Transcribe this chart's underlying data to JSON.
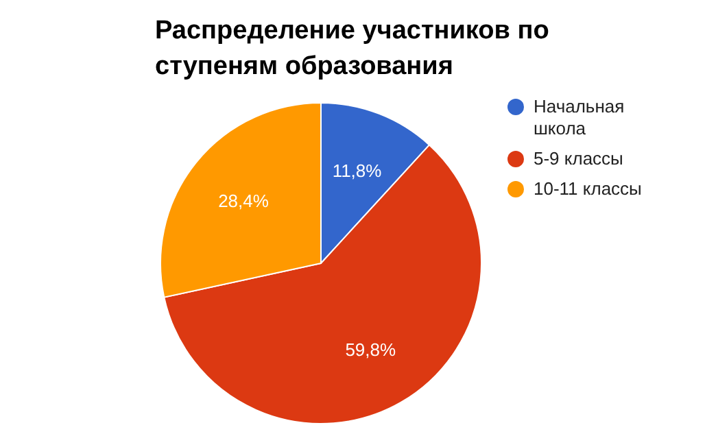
{
  "chart_data": {
    "type": "pie",
    "title": "Распределение участников по ступеням образования",
    "categories": [
      "Начальная школа",
      "5-9 классы",
      "10-11 классы"
    ],
    "values": [
      11.8,
      59.8,
      28.4
    ],
    "colors": [
      "#3366cc",
      "#dc3912",
      "#ff9900"
    ],
    "value_labels": [
      "11,8%",
      "59,8%",
      "28,4%"
    ],
    "legend": "right"
  }
}
